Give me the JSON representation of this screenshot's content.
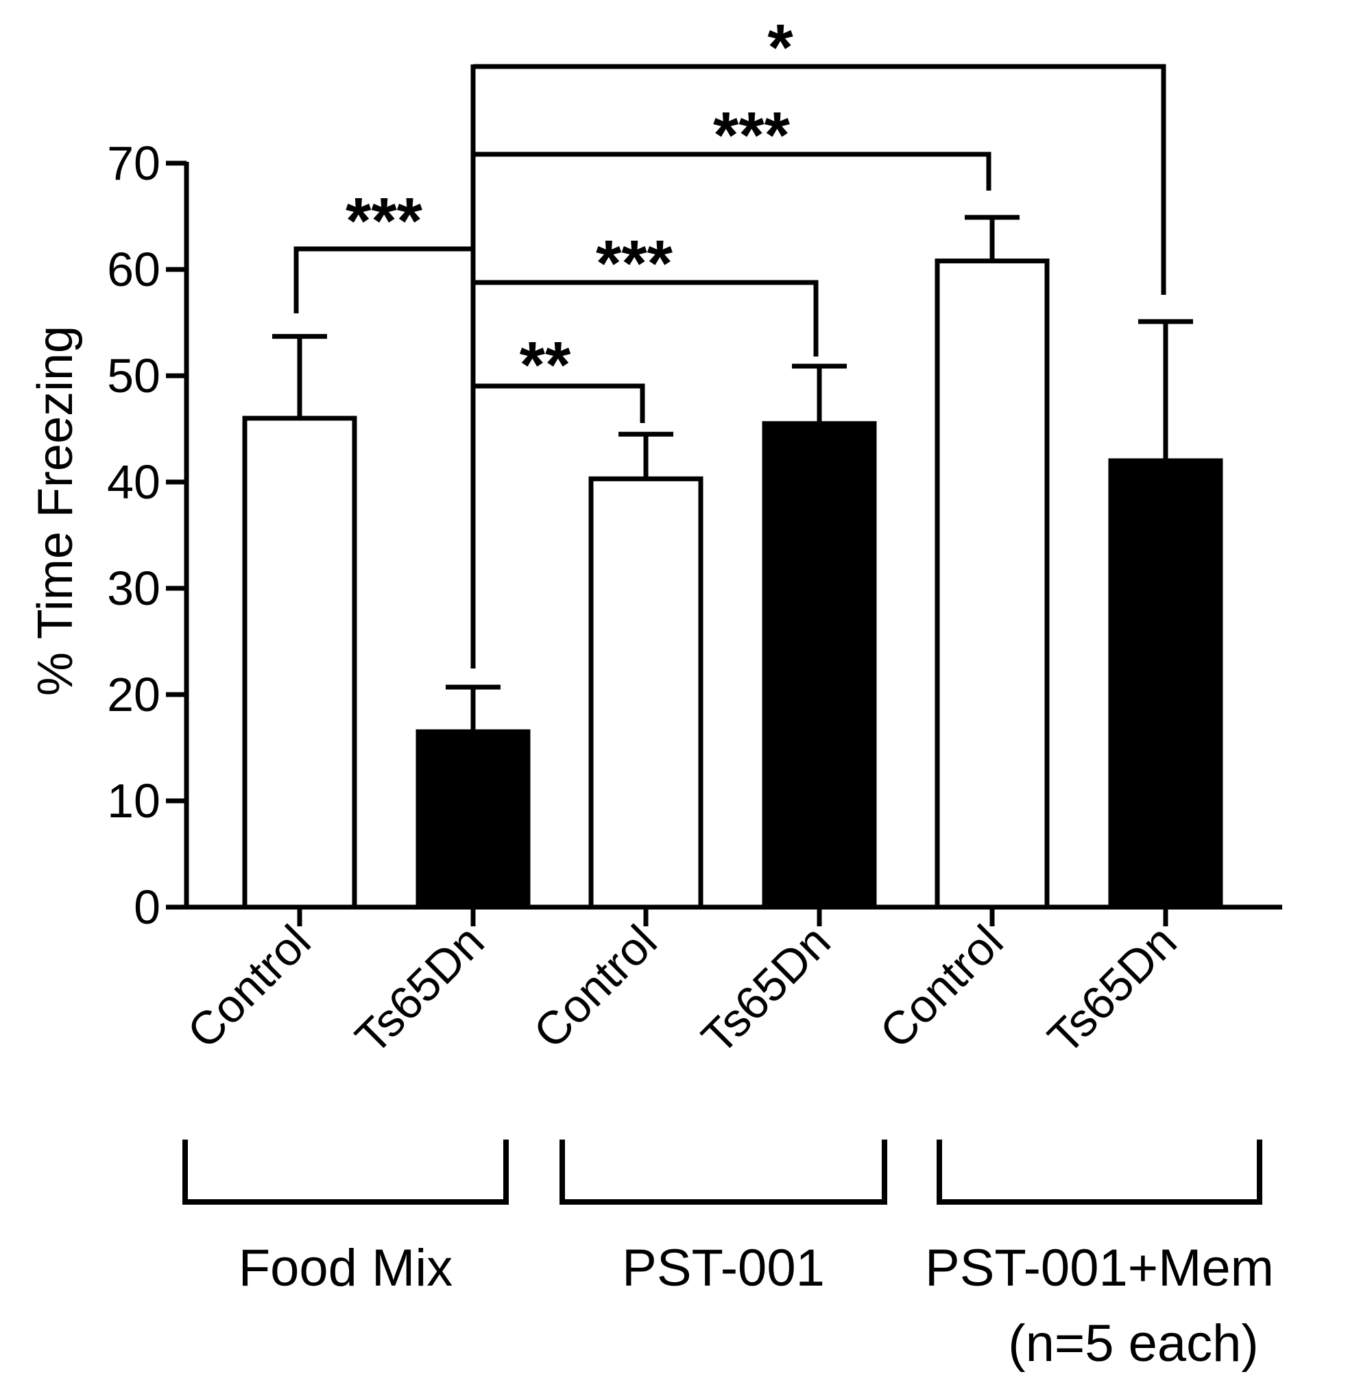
{
  "chart_data": {
    "type": "bar",
    "ylabel": "% Time Freezing",
    "ylim": [
      0,
      70
    ],
    "yticks": [
      0,
      10,
      20,
      30,
      40,
      50,
      60,
      70
    ],
    "categories": [
      "Control",
      "Ts65Dn",
      "Control",
      "Ts65Dn",
      "Control",
      "Ts65Dn"
    ],
    "values": [
      46,
      16.5,
      40.3,
      45.5,
      60.8,
      42
    ],
    "errors": [
      7.7,
      4.2,
      4.2,
      5.4,
      4.1,
      13.1
    ],
    "fills": [
      "#ffffff",
      "#000000",
      "#ffffff",
      "#000000",
      "#ffffff",
      "#000000"
    ],
    "groups": [
      {
        "label": "Food Mix",
        "bars": [
          0,
          1
        ]
      },
      {
        "label": "PST-001",
        "bars": [
          2,
          3
        ]
      },
      {
        "label": "PST-001+Mem",
        "bars": [
          4,
          5
        ]
      }
    ],
    "group_note": "(n=5 each)",
    "significance": [
      {
        "from": 0,
        "to": 1,
        "label": "***"
      },
      {
        "from": 1,
        "to": 2,
        "label": "**"
      },
      {
        "from": 1,
        "to": 3,
        "label": "***"
      },
      {
        "from": 1,
        "to": 4,
        "label": "***"
      },
      {
        "from": 1,
        "to": 5,
        "label": "*"
      }
    ]
  }
}
